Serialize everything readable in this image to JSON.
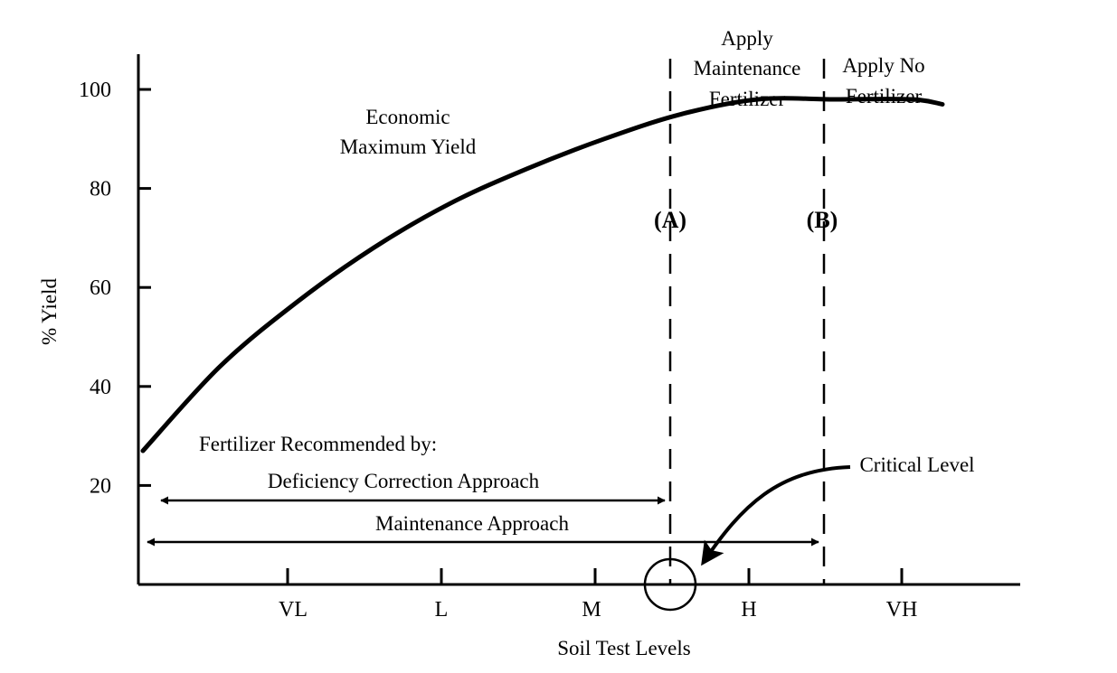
{
  "chart_data": {
    "type": "line",
    "title": "",
    "xlabel": "Soil Test Levels",
    "ylabel": "% Yield",
    "ylim": [
      0,
      110
    ],
    "y_ticks": [
      20,
      40,
      60,
      80,
      100
    ],
    "x_categories": [
      "VL",
      "L",
      "M",
      "H",
      "VH"
    ],
    "grid": false,
    "legend": "none",
    "series": [
      {
        "values_note": "",
        "x": [
          0,
          0.5,
          1,
          1.5,
          2,
          2.5,
          3,
          3.5,
          4,
          4.5,
          5,
          5.2
        ],
        "y": [
          27,
          44,
          57,
          68,
          77,
          84,
          90,
          95,
          98,
          98,
          98,
          97
        ]
      }
    ],
    "critical_levels": [
      {
        "id": "A",
        "label": "(A)",
        "x": 3.5
      },
      {
        "id": "B",
        "label": "(B)",
        "x": 4.5
      }
    ],
    "annotations": {
      "economic_max_line1": "Economic",
      "economic_max_line2": "Maximum Yield",
      "maintenance_line1": "Apply",
      "maintenance_line2": "Maintenance",
      "maintenance_line3": "Fertilizer",
      "nofert_line1": "Apply No",
      "nofert_line2": "Fertilizer",
      "fert_recommended": "Fertilizer Recommended by:",
      "deficiency_approach": "Deficiency Correction Approach",
      "maintenance_approach": "Maintenance Approach",
      "critical_level": "Critical Level"
    },
    "colors": {
      "ink": "#000000",
      "background": "#ffffff"
    }
  }
}
